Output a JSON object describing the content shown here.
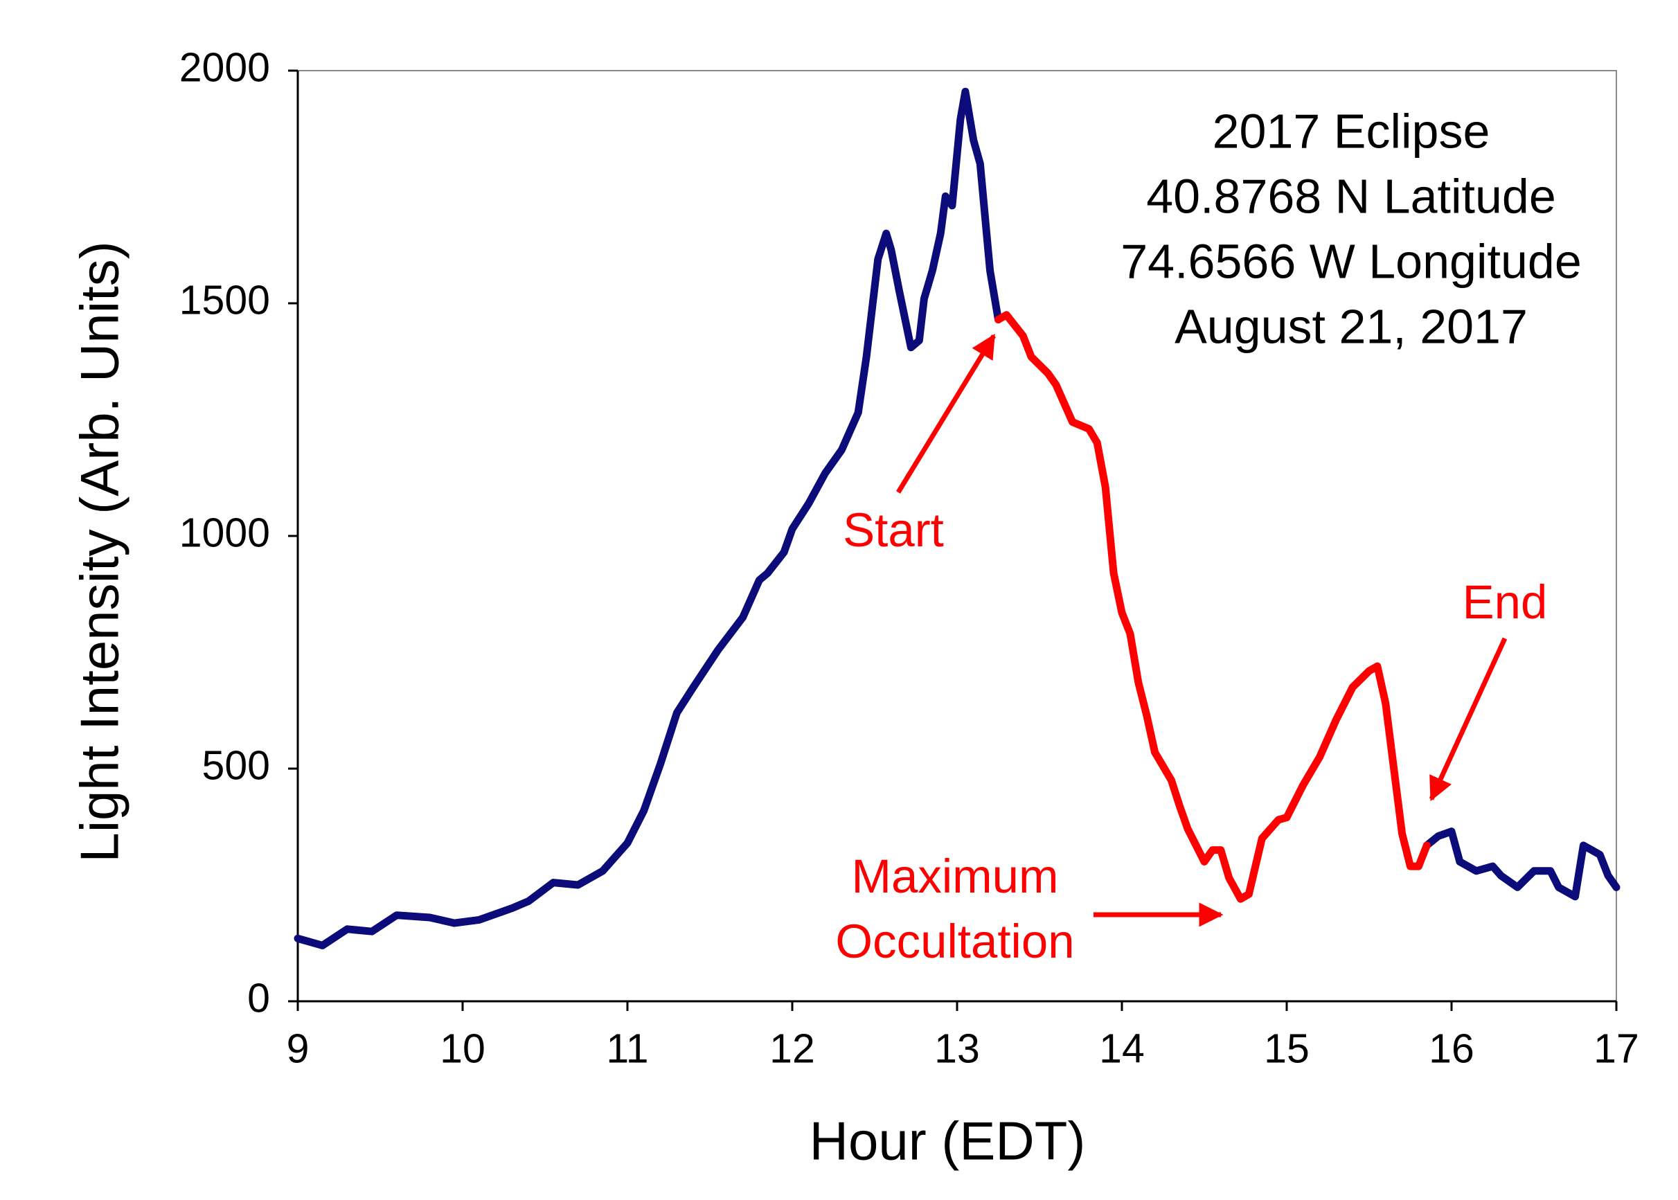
{
  "chart_data": {
    "type": "line",
    "x_label": "Hour (EDT)",
    "y_label": "Light Intensity (Arb. Units)",
    "x": [
      9.0,
      9.15,
      9.3,
      9.45,
      9.6,
      9.8,
      9.95,
      10.1,
      10.3,
      10.4,
      10.55,
      10.7,
      10.85,
      11.0,
      11.1,
      11.2,
      11.3,
      11.4,
      11.55,
      11.7,
      11.8,
      11.85,
      11.95,
      12.0,
      12.1,
      12.2,
      12.3,
      12.4,
      12.45,
      12.52,
      12.57,
      12.6,
      12.65,
      12.72,
      12.77,
      12.8,
      12.85,
      12.9,
      12.93,
      12.97,
      13.02,
      13.05,
      13.1,
      13.14,
      13.2,
      13.25,
      13.3,
      13.4,
      13.45,
      13.55,
      13.6,
      13.7,
      13.8,
      13.85,
      13.9,
      13.95,
      14.0,
      14.05,
      14.1,
      14.15,
      14.2,
      14.3,
      14.35,
      14.4,
      14.5,
      14.55,
      14.6,
      14.65,
      14.72,
      14.77,
      14.85,
      14.95,
      15.0,
      15.1,
      15.2,
      15.3,
      15.4,
      15.5,
      15.55,
      15.6,
      15.7,
      15.75,
      15.8,
      15.85,
      15.92,
      16.0,
      16.05,
      16.15,
      16.25,
      16.3,
      16.4,
      16.5,
      16.6,
      16.65,
      16.75,
      16.8,
      16.9,
      16.95,
      17.0
    ],
    "series": [
      {
        "color": "#0b0b7a",
        "values": [
          135,
          120,
          155,
          150,
          185,
          180,
          168,
          175,
          200,
          215,
          255,
          250,
          280,
          340,
          410,
          510,
          620,
          675,
          755,
          825,
          905,
          920,
          965,
          1015,
          1070,
          1135,
          1185,
          1265,
          1385,
          1595,
          1650,
          1615,
          1525,
          1405,
          1420,
          1510,
          1570,
          1650,
          1730,
          1710,
          1895,
          1955,
          1850,
          1800,
          1570,
          1465,
          null,
          null,
          null,
          null,
          null,
          null,
          null,
          null,
          null,
          null,
          null,
          null,
          null,
          null,
          null,
          null,
          null,
          null,
          null,
          null,
          null,
          null,
          null,
          null,
          null,
          null,
          null,
          null,
          null,
          null,
          null,
          null,
          null,
          null,
          null,
          null,
          null,
          335,
          355,
          365,
          300,
          280,
          290,
          270,
          245,
          280,
          280,
          245,
          225,
          335,
          315,
          270,
          245
        ]
      },
      {
        "color": "#ff0000",
        "values": [
          null,
          null,
          null,
          null,
          null,
          null,
          null,
          null,
          null,
          null,
          null,
          null,
          null,
          null,
          null,
          null,
          null,
          null,
          null,
          null,
          null,
          null,
          null,
          null,
          null,
          null,
          null,
          null,
          null,
          null,
          null,
          null,
          null,
          null,
          null,
          null,
          null,
          null,
          null,
          null,
          null,
          null,
          null,
          null,
          null,
          1465,
          1475,
          1430,
          1385,
          1350,
          1325,
          1245,
          1230,
          1200,
          1105,
          920,
          835,
          790,
          685,
          615,
          535,
          475,
          420,
          370,
          300,
          325,
          325,
          265,
          220,
          230,
          350,
          390,
          395,
          465,
          525,
          605,
          675,
          710,
          720,
          640,
          360,
          290,
          290,
          335,
          null,
          null,
          null,
          null,
          null,
          null,
          null,
          null,
          null,
          null,
          null,
          null,
          null,
          null,
          null
        ]
      }
    ],
    "xlim": [
      9,
      17
    ],
    "xticks": [
      9,
      10,
      11,
      12,
      13,
      14,
      15,
      16,
      17
    ],
    "ylim": [
      0,
      2000
    ],
    "yticks": [
      0,
      500,
      1000,
      1500,
      2000
    ],
    "info_lines": [
      "2017 Eclipse",
      "40.8768 N Latitude",
      "74.6566 W Longitude",
      "August 21, 2017"
    ],
    "annotations": [
      {
        "lines": [
          "Start"
        ],
        "color": "#ff0000"
      },
      {
        "lines": [
          "Maximum",
          "Occultation"
        ],
        "color": "#ff0000"
      },
      {
        "lines": [
          "End"
        ],
        "color": "#ff0000"
      }
    ]
  }
}
